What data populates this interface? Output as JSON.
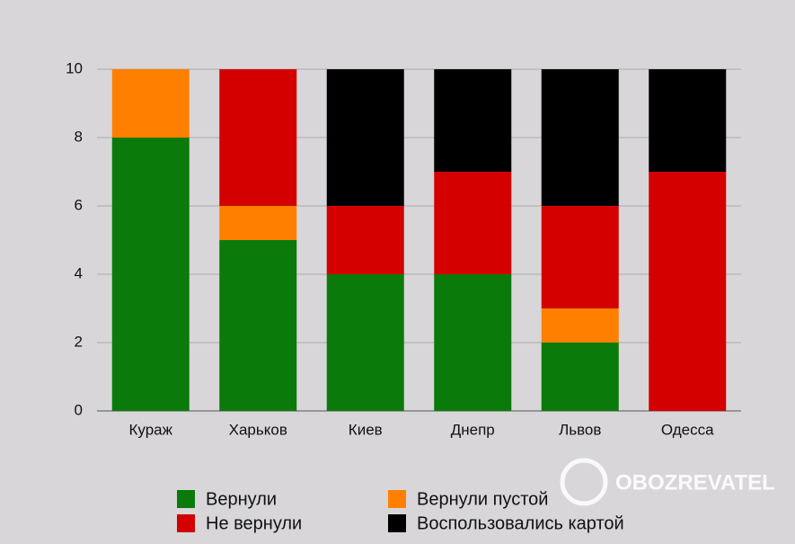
{
  "chart_data": {
    "type": "stacked-bar",
    "categories": [
      "Кураж",
      "Харьков",
      "Киев",
      "Днепр",
      "Львов",
      "Одесса"
    ],
    "series": [
      {
        "name": "Вернули",
        "color": "#0a7a0a",
        "values": [
          8,
          5,
          4,
          4,
          2,
          0
        ]
      },
      {
        "name": "Вернули пустой",
        "color": "#ff8000",
        "values": [
          2,
          1,
          0,
          0,
          1,
          0
        ]
      },
      {
        "name": "Не вернули",
        "color": "#d40000",
        "values": [
          0,
          4,
          2,
          3,
          3,
          7
        ]
      },
      {
        "name": "Воспользовались картой",
        "color": "#000000",
        "values": [
          0,
          0,
          4,
          3,
          4,
          3
        ]
      }
    ],
    "ylim": [
      0,
      10
    ],
    "yticks": [
      0,
      2,
      4,
      6,
      8,
      10
    ],
    "grid": true,
    "legend": "bottom"
  },
  "watermark": "OBOZREVATEL"
}
